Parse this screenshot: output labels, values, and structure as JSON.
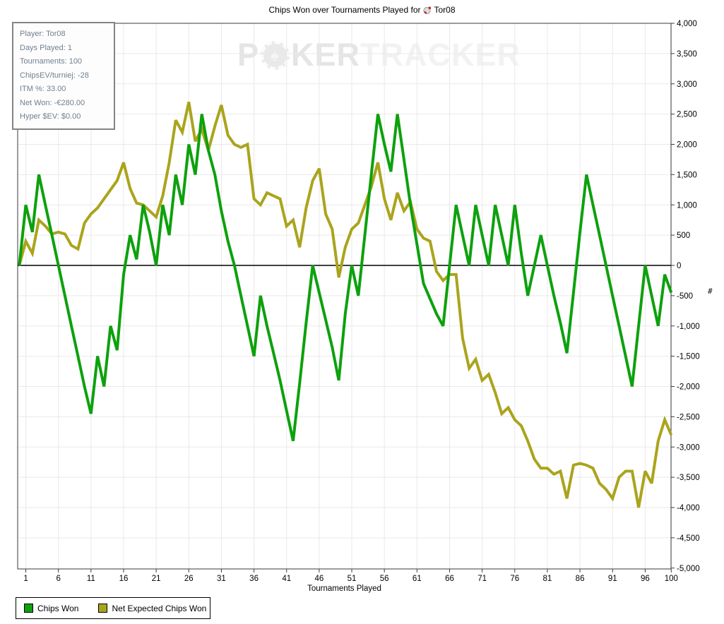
{
  "title": {
    "text": "Chips Won over Tournaments Played for",
    "player": "Tor08",
    "icon": "site-icon"
  },
  "tooltip": {
    "lines": [
      "Player: Tor08",
      "Days Played: 1",
      "Tournaments: 100",
      "ChipsEV/turniej: -28",
      "ITM %: 33.00",
      "Net Won: -€280.00",
      "Hyper $EV: $0.00"
    ]
  },
  "watermark": {
    "p1": "P",
    "p2": "KER",
    "p3": "TRACKER",
    "spade": "♠"
  },
  "edge_marker": "#",
  "legend": [
    {
      "label": "Chips Won",
      "color": "#0DA10D"
    },
    {
      "label": "Net Expected Chips Won",
      "color": "#AAA41D"
    }
  ],
  "colors": {
    "chips_won": "#0DA10D",
    "net_expected": "#AAA41D",
    "grid": "#e9e9e9",
    "axis": "#3a3a3a",
    "zero_line": "#000000"
  },
  "chart_data": {
    "type": "line",
    "title": "Chips Won over Tournaments Played for Tor08",
    "xlabel": "Tournaments Played",
    "ylabel": "",
    "xlim": [
      0,
      100
    ],
    "ylim": [
      -5000,
      4000
    ],
    "grid": true,
    "zero_line": true,
    "legend_position": "bottom-left",
    "x_ticks": [
      1,
      6,
      11,
      16,
      21,
      26,
      31,
      36,
      41,
      46,
      51,
      56,
      61,
      66,
      71,
      76,
      81,
      86,
      91,
      96,
      100
    ],
    "y_ticks": [
      4000,
      3500,
      3000,
      2500,
      2000,
      1500,
      1000,
      500,
      0,
      -500,
      -1000,
      -1500,
      -2000,
      -2500,
      -3000,
      -3500,
      -4000,
      -4500,
      -5000
    ],
    "x_start": 0,
    "x_step": 1,
    "series": [
      {
        "name": "Chips Won",
        "color": "#0DA10D",
        "values": [
          0,
          1000,
          550,
          1500,
          1000,
          500,
          0,
          -500,
          -1000,
          -1500,
          -2000,
          -2450,
          -1500,
          -2000,
          -1000,
          -1400,
          -150,
          500,
          100,
          1000,
          550,
          0,
          1000,
          500,
          1500,
          1000,
          2000,
          1500,
          2500,
          1900,
          1500,
          900,
          400,
          0,
          -500,
          -1000,
          -1500,
          -500,
          -1000,
          -1450,
          -1900,
          -2400,
          -2900,
          -1950,
          -950,
          0,
          -450,
          -900,
          -1350,
          -1900,
          -800,
          0,
          -500,
          500,
          1500,
          2500,
          2000,
          1550,
          2500,
          1750,
          1000,
          350,
          -300,
          -550,
          -800,
          -1000,
          0,
          1000,
          500,
          0,
          1000,
          500,
          0,
          1000,
          500,
          0,
          1000,
          200,
          -500,
          0,
          500,
          0,
          -500,
          -950,
          -1450,
          -450,
          550,
          1500,
          1000,
          500,
          0,
          -500,
          -1000,
          -1500,
          -2000,
          -1000,
          0,
          -500,
          -1000,
          -150,
          -450
        ]
      },
      {
        "name": "Net Expected Chips Won",
        "color": "#AAA41D",
        "values": [
          0,
          400,
          200,
          750,
          650,
          520,
          550,
          520,
          330,
          270,
          700,
          850,
          950,
          1100,
          1250,
          1400,
          1700,
          1270,
          1030,
          1000,
          900,
          800,
          1150,
          1700,
          2400,
          2200,
          2700,
          2050,
          2250,
          1900,
          2300,
          2650,
          2150,
          2000,
          1950,
          2000,
          1100,
          1000,
          1200,
          1150,
          1100,
          650,
          750,
          300,
          950,
          1400,
          1600,
          850,
          600,
          -200,
          300,
          600,
          700,
          1000,
          1300,
          1700,
          1100,
          750,
          1200,
          900,
          1050,
          600,
          450,
          400,
          -100,
          -250,
          -150,
          -150,
          -1200,
          -1700,
          -1550,
          -1900,
          -1800,
          -2100,
          -2450,
          -2350,
          -2550,
          -2650,
          -2900,
          -3200,
          -3350,
          -3350,
          -3450,
          -3400,
          -3850,
          -3300,
          -3270,
          -3300,
          -3350,
          -3600,
          -3700,
          -3850,
          -3500,
          -3400,
          -3400,
          -4000,
          -3400,
          -3600,
          -2900,
          -2550,
          -2800
        ]
      }
    ]
  }
}
